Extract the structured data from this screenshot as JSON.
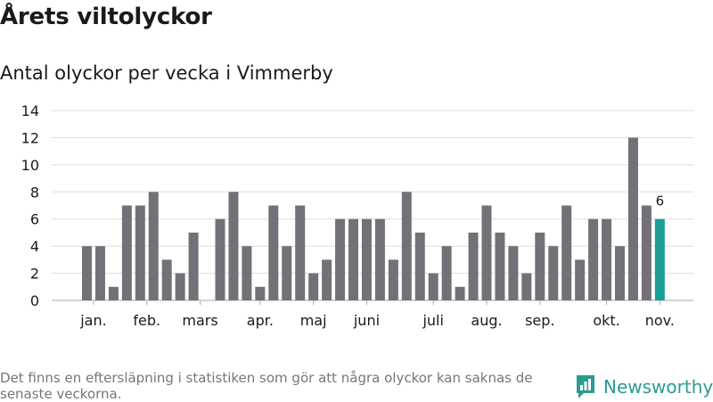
{
  "header": {
    "title": "Årets viltolyckor",
    "subtitle": "Antal olyckor per vecka i Vimmerby"
  },
  "footer": {
    "note": "Det finns en eftersläpning i statistiken som gör att några olyckor kan saknas de senaste veckorna.",
    "brand": "Newsworthy",
    "logo_icon": "bar-chart-speech-bubble-icon"
  },
  "colors": {
    "bar": "#737177",
    "highlight": "#1a9e96",
    "grid": "#dddddd",
    "brand": "#2a9d8f"
  },
  "chart_data": {
    "type": "bar",
    "title": "Årets viltolyckor",
    "subtitle": "Antal olyckor per vecka i Vimmerby",
    "x_unit": "week",
    "weeks": [
      1,
      2,
      3,
      4,
      5,
      6,
      7,
      8,
      9,
      10,
      11,
      12,
      13,
      14,
      15,
      16,
      17,
      18,
      19,
      20,
      21,
      22,
      23,
      24,
      25,
      26,
      27,
      28,
      29,
      30,
      31,
      32,
      33,
      34,
      35,
      36,
      37,
      38,
      39,
      40,
      41,
      42,
      43,
      44
    ],
    "values": [
      4,
      4,
      1,
      7,
      7,
      8,
      3,
      2,
      5,
      0,
      6,
      8,
      4,
      1,
      7,
      4,
      7,
      2,
      3,
      6,
      6,
      6,
      6,
      3,
      8,
      5,
      2,
      4,
      1,
      5,
      7,
      5,
      4,
      2,
      5,
      4,
      7,
      3,
      6,
      6,
      4,
      12,
      7,
      6
    ],
    "highlight_last": true,
    "highlight_label": "6",
    "month_ticks": [
      {
        "label": "jan.",
        "week": 1.5
      },
      {
        "label": "feb.",
        "week": 5.5
      },
      {
        "label": "mars",
        "week": 9.5
      },
      {
        "label": "apr.",
        "week": 14
      },
      {
        "label": "maj",
        "week": 18
      },
      {
        "label": "juni",
        "week": 22
      },
      {
        "label": "juli",
        "week": 27
      },
      {
        "label": "aug.",
        "week": 31
      },
      {
        "label": "sep.",
        "week": 35
      },
      {
        "label": "okt.",
        "week": 40
      },
      {
        "label": "nov.",
        "week": 44
      }
    ],
    "ylim": [
      0,
      14
    ],
    "yticks": [
      0,
      2,
      4,
      6,
      8,
      10,
      12,
      14
    ],
    "grid": true,
    "legend": "none"
  }
}
